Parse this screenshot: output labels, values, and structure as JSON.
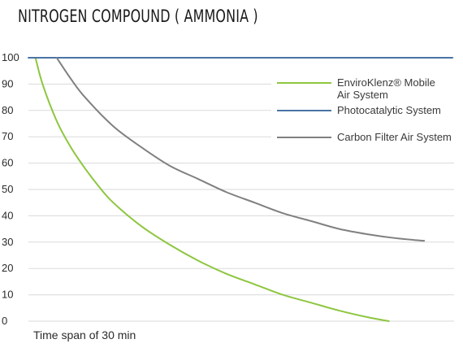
{
  "chart_data": {
    "type": "line",
    "title": "NITROGEN COMPOUND ( AMMONIA )",
    "xlabel": "Time span of 30 min",
    "ylabel": "",
    "ylim": [
      0,
      100
    ],
    "yticks": [
      100,
      90,
      80,
      70,
      60,
      50,
      40,
      30,
      20,
      10,
      0
    ],
    "grid": true,
    "legend_position": "right",
    "series": [
      {
        "name": "EnviroKlenz® Mobile Air System",
        "color": "#8dc63f",
        "x": [
          0.5,
          1,
          2,
          3,
          4,
          5,
          6,
          8,
          10,
          12,
          14,
          16,
          18,
          20,
          22,
          24,
          25.5
        ],
        "values": [
          100,
          90,
          76,
          66,
          58,
          51,
          45,
          36,
          29,
          23,
          18,
          14,
          10,
          7,
          4,
          1.5,
          0
        ]
      },
      {
        "name": "Photocatalytic System",
        "color": "#4a74a6",
        "x": [
          0,
          30
        ],
        "values": [
          100,
          100
        ]
      },
      {
        "name": "Carbon Filter Air System",
        "color": "#808080",
        "x": [
          2,
          3,
          4,
          6,
          8,
          10,
          12,
          14,
          16,
          18,
          20,
          22,
          24,
          26,
          28
        ],
        "values": [
          100,
          92,
          85,
          74,
          66,
          59,
          54,
          49,
          45,
          41,
          38,
          35,
          33,
          31.5,
          30.5
        ]
      }
    ],
    "legend_lines": [
      [
        "EnviroKlenz® Mobile",
        "Air System"
      ],
      [
        "Photocatalytic System"
      ],
      [
        "Carbon Filter Air System"
      ]
    ]
  }
}
